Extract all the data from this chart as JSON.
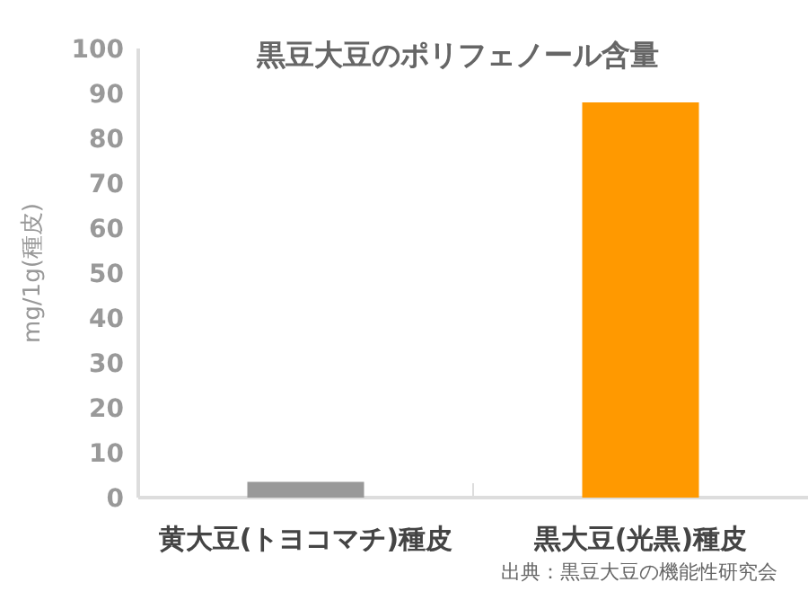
{
  "chart_data": {
    "type": "bar",
    "title": "黒豆大豆のポリフェノール含量",
    "ylabel": "mg/1g(種皮)",
    "categories": [
      "黄大豆(トヨコマチ)種皮",
      "黒大豆(光黒)種皮"
    ],
    "values": [
      3.5,
      88
    ],
    "colors": [
      "#999999",
      "#ff9900"
    ],
    "ylim": [
      0,
      100
    ],
    "yticks": [
      0,
      10,
      20,
      30,
      40,
      50,
      60,
      70,
      80,
      90,
      100
    ],
    "grid": false,
    "annotations": [
      "出典：黒豆大豆の機能性研究会"
    ]
  }
}
